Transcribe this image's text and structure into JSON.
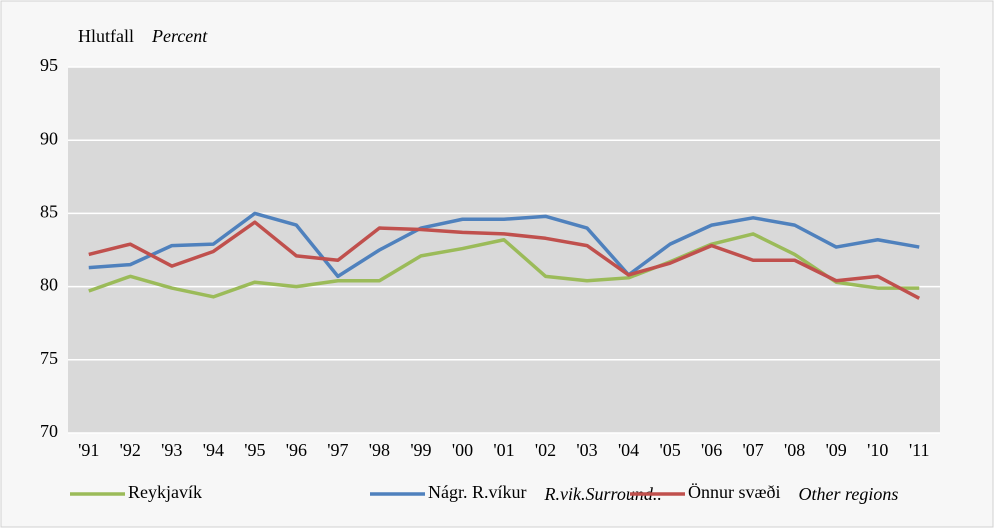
{
  "chart_data": {
    "type": "line",
    "ylabel": "Hlutfall",
    "ylabel_en": "Percent",
    "categories": [
      "'91",
      "'92",
      "'93",
      "'94",
      "'95",
      "'96",
      "'97",
      "'98",
      "'99",
      "'00",
      "'01",
      "'02",
      "'03",
      "'04",
      "'05",
      "'06",
      "'07",
      "'08",
      "'09",
      "'10",
      "'11"
    ],
    "series": [
      {
        "name": "Reykjavík",
        "color": "#9bbb59",
        "values": [
          79.7,
          80.7,
          79.9,
          79.3,
          80.3,
          80.0,
          80.4,
          80.4,
          82.1,
          82.6,
          83.2,
          80.7,
          80.4,
          80.6,
          81.7,
          82.9,
          83.6,
          82.2,
          80.3,
          79.9,
          79.9
        ]
      },
      {
        "name": "Nágr. R.víkur",
        "name_en": "R.vik.Surround..",
        "color": "#4f81bd",
        "values": [
          81.3,
          81.5,
          82.8,
          82.9,
          85.0,
          84.2,
          80.7,
          82.5,
          84.0,
          84.6,
          84.6,
          84.8,
          84.0,
          80.8,
          82.9,
          84.2,
          84.7,
          84.2,
          82.7,
          83.2,
          82.7
        ]
      },
      {
        "name": "Önnur svæði",
        "name_en": "Other regions",
        "color": "#c0504d",
        "values": [
          82.2,
          82.9,
          81.4,
          82.4,
          84.4,
          82.1,
          81.8,
          84.0,
          83.9,
          83.7,
          83.6,
          83.3,
          82.8,
          80.8,
          81.6,
          82.8,
          81.8,
          81.8,
          80.4,
          80.7,
          79.2
        ]
      }
    ],
    "ylim": [
      70,
      95
    ],
    "yticks": [
      70,
      75,
      80,
      85,
      90,
      95
    ],
    "grid": true
  }
}
